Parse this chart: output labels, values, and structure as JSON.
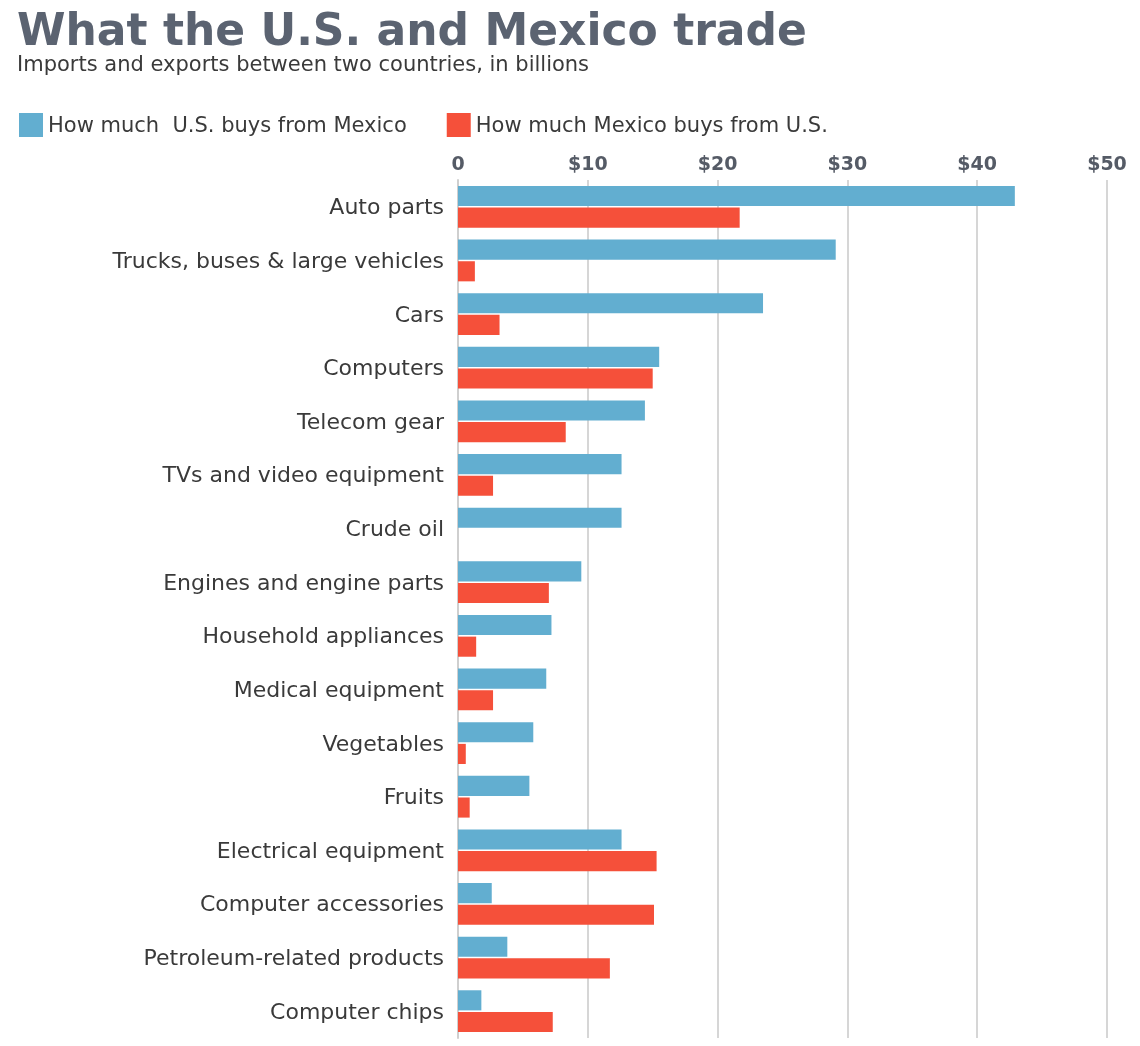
{
  "chart_data": {
    "type": "bar",
    "orientation": "horizontal",
    "title": "What the U.S. and Mexico trade",
    "subtitle": "Imports and exports between two countries, in billions",
    "categories": [
      "Auto parts",
      "Trucks, buses & large vehicles",
      "Cars",
      "Computers",
      "Telecom gear",
      "TVs and video equipment",
      "Crude oil",
      "Engines and engine parts",
      "Household appliances",
      "Medical equipment",
      "Vegetables",
      "Fruits",
      "Electrical equipment",
      "Computer accessories",
      "Petroleum-related products",
      "Computer chips"
    ],
    "series": [
      {
        "name": "How much  U.S. buys from Mexico",
        "color": "#62aed0",
        "values": [
          42.9,
          29.1,
          23.5,
          15.5,
          14.4,
          12.6,
          12.6,
          9.5,
          7.2,
          6.8,
          5.8,
          5.5,
          12.6,
          2.6,
          3.8,
          1.8
        ]
      },
      {
        "name": "How much Mexico buys from U.S.",
        "color": "#f5503a",
        "values": [
          21.7,
          1.3,
          3.2,
          15.0,
          8.3,
          2.7,
          0,
          7.0,
          1.4,
          2.7,
          0.6,
          0.9,
          15.3,
          15.1,
          11.7,
          7.3
        ]
      }
    ],
    "xlim": [
      0,
      50
    ],
    "xticks": [
      0,
      {
        "value": 10,
        "label": "$10"
      },
      {
        "value": 20,
        "label": "$20"
      },
      {
        "value": 30,
        "label": "$30"
      },
      {
        "value": 40,
        "label": "$40"
      },
      {
        "value": 50,
        "label": "$50"
      }
    ],
    "grid": "x",
    "legend": "top left"
  }
}
